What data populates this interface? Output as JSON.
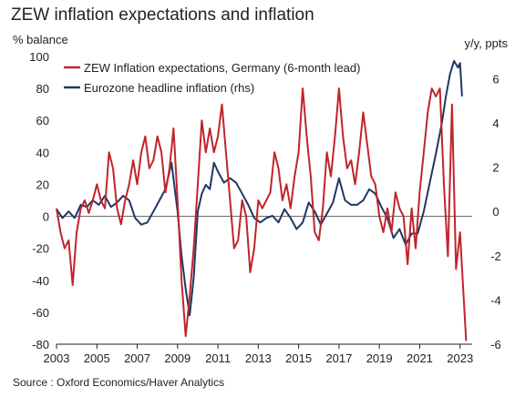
{
  "title": "ZEW inflation expectations and inflation",
  "y_left_unit": "% balance",
  "y_right_unit": "y/y, ppts",
  "source": "Source : Oxford Economics/Haver Analytics",
  "colors": {
    "zew": "#c0242b",
    "hicp": "#1f3864",
    "axis": "#222222"
  },
  "chart_data": {
    "type": "line",
    "title": "ZEW inflation expectations and inflation",
    "xlim": [
      2003,
      2023.6
    ],
    "x_ticks": [
      2003,
      2005,
      2007,
      2009,
      2011,
      2013,
      2015,
      2017,
      2019,
      2021,
      2023
    ],
    "y_left": {
      "label": "% balance",
      "lim": [
        -80,
        100
      ],
      "ticks": [
        -80,
        -60,
        -40,
        -20,
        0,
        20,
        40,
        60,
        80,
        100
      ]
    },
    "y_right": {
      "label": "y/y, ppts",
      "lim": [
        -6,
        7
      ],
      "ticks": [
        -6,
        -4,
        -2,
        0,
        2,
        4,
        6
      ]
    },
    "legend_position": "top-left",
    "series": [
      {
        "name": "ZEW Inflation expectations, Germany (6-month lead)",
        "axis": "left",
        "color": "#c0242b",
        "points": [
          [
            2003.0,
            5
          ],
          [
            2003.2,
            -10
          ],
          [
            2003.4,
            -20
          ],
          [
            2003.6,
            -15
          ],
          [
            2003.8,
            -43
          ],
          [
            2004.0,
            -10
          ],
          [
            2004.2,
            5
          ],
          [
            2004.4,
            10
          ],
          [
            2004.6,
            2
          ],
          [
            2004.8,
            10
          ],
          [
            2005.0,
            20
          ],
          [
            2005.2,
            10
          ],
          [
            2005.4,
            5
          ],
          [
            2005.6,
            40
          ],
          [
            2005.8,
            30
          ],
          [
            2006.0,
            5
          ],
          [
            2006.2,
            -5
          ],
          [
            2006.4,
            10
          ],
          [
            2006.6,
            20
          ],
          [
            2006.8,
            35
          ],
          [
            2007.0,
            20
          ],
          [
            2007.2,
            40
          ],
          [
            2007.4,
            50
          ],
          [
            2007.6,
            30
          ],
          [
            2007.8,
            35
          ],
          [
            2008.0,
            50
          ],
          [
            2008.2,
            40
          ],
          [
            2008.4,
            15
          ],
          [
            2008.6,
            30
          ],
          [
            2008.8,
            55
          ],
          [
            2009.0,
            10
          ],
          [
            2009.2,
            -40
          ],
          [
            2009.4,
            -75
          ],
          [
            2009.6,
            -50
          ],
          [
            2009.8,
            -20
          ],
          [
            2010.0,
            20
          ],
          [
            2010.2,
            60
          ],
          [
            2010.4,
            40
          ],
          [
            2010.6,
            55
          ],
          [
            2010.8,
            40
          ],
          [
            2011.0,
            50
          ],
          [
            2011.2,
            70
          ],
          [
            2011.4,
            40
          ],
          [
            2011.6,
            10
          ],
          [
            2011.8,
            -20
          ],
          [
            2012.0,
            -15
          ],
          [
            2012.2,
            10
          ],
          [
            2012.4,
            0
          ],
          [
            2012.6,
            -35
          ],
          [
            2012.8,
            -20
          ],
          [
            2013.0,
            10
          ],
          [
            2013.2,
            5
          ],
          [
            2013.4,
            10
          ],
          [
            2013.6,
            15
          ],
          [
            2013.8,
            40
          ],
          [
            2014.0,
            30
          ],
          [
            2014.2,
            10
          ],
          [
            2014.4,
            20
          ],
          [
            2014.6,
            5
          ],
          [
            2014.8,
            25
          ],
          [
            2015.0,
            40
          ],
          [
            2015.2,
            80
          ],
          [
            2015.4,
            50
          ],
          [
            2015.6,
            25
          ],
          [
            2015.8,
            -10
          ],
          [
            2016.0,
            -15
          ],
          [
            2016.2,
            5
          ],
          [
            2016.4,
            40
          ],
          [
            2016.6,
            25
          ],
          [
            2016.8,
            50
          ],
          [
            2017.0,
            80
          ],
          [
            2017.2,
            50
          ],
          [
            2017.4,
            30
          ],
          [
            2017.6,
            35
          ],
          [
            2017.8,
            20
          ],
          [
            2018.0,
            40
          ],
          [
            2018.2,
            65
          ],
          [
            2018.4,
            45
          ],
          [
            2018.6,
            25
          ],
          [
            2018.8,
            20
          ],
          [
            2019.0,
            0
          ],
          [
            2019.2,
            -10
          ],
          [
            2019.4,
            5
          ],
          [
            2019.6,
            -10
          ],
          [
            2019.8,
            15
          ],
          [
            2020.0,
            5
          ],
          [
            2020.2,
            0
          ],
          [
            2020.4,
            -30
          ],
          [
            2020.6,
            5
          ],
          [
            2020.8,
            -20
          ],
          [
            2021.0,
            15
          ],
          [
            2021.2,
            40
          ],
          [
            2021.4,
            65
          ],
          [
            2021.6,
            80
          ],
          [
            2021.8,
            75
          ],
          [
            2022.0,
            80
          ],
          [
            2022.2,
            20
          ],
          [
            2022.4,
            -25
          ],
          [
            2022.6,
            70
          ],
          [
            2022.8,
            -33
          ],
          [
            2023.0,
            -10
          ],
          [
            2023.2,
            -55
          ],
          [
            2023.3,
            -78
          ]
        ]
      },
      {
        "name": "Eurozone headline inflation (rhs)",
        "axis": "right",
        "color": "#1f3864",
        "points": [
          [
            2003.0,
            0.1
          ],
          [
            2003.3,
            -0.3
          ],
          [
            2003.6,
            0.0
          ],
          [
            2003.9,
            -0.3
          ],
          [
            2004.2,
            0.3
          ],
          [
            2004.5,
            0.2
          ],
          [
            2004.8,
            0.5
          ],
          [
            2005.1,
            0.3
          ],
          [
            2005.4,
            0.7
          ],
          [
            2005.7,
            0.2
          ],
          [
            2006.0,
            0.4
          ],
          [
            2006.3,
            0.7
          ],
          [
            2006.6,
            0.5
          ],
          [
            2006.9,
            -0.3
          ],
          [
            2007.2,
            -0.6
          ],
          [
            2007.5,
            -0.5
          ],
          [
            2007.8,
            0.0
          ],
          [
            2008.1,
            0.5
          ],
          [
            2008.4,
            1.0
          ],
          [
            2008.7,
            2.2
          ],
          [
            2009.0,
            0.0
          ],
          [
            2009.2,
            -2.0
          ],
          [
            2009.4,
            -3.5
          ],
          [
            2009.6,
            -4.7
          ],
          [
            2009.8,
            -3.0
          ],
          [
            2010.0,
            0.0
          ],
          [
            2010.2,
            0.8
          ],
          [
            2010.4,
            1.2
          ],
          [
            2010.6,
            1.0
          ],
          [
            2010.8,
            2.2
          ],
          [
            2011.0,
            1.8
          ],
          [
            2011.3,
            1.3
          ],
          [
            2011.6,
            1.5
          ],
          [
            2011.9,
            1.3
          ],
          [
            2012.2,
            0.8
          ],
          [
            2012.5,
            0.3
          ],
          [
            2012.8,
            -0.3
          ],
          [
            2013.1,
            -0.5
          ],
          [
            2013.4,
            -0.3
          ],
          [
            2013.7,
            -0.2
          ],
          [
            2014.0,
            -0.5
          ],
          [
            2014.3,
            0.1
          ],
          [
            2014.6,
            -0.3
          ],
          [
            2014.9,
            -0.8
          ],
          [
            2015.2,
            -0.5
          ],
          [
            2015.5,
            0.4
          ],
          [
            2015.8,
            0.0
          ],
          [
            2016.1,
            -0.6
          ],
          [
            2016.4,
            -0.1
          ],
          [
            2016.7,
            0.4
          ],
          [
            2017.0,
            1.5
          ],
          [
            2017.3,
            0.5
          ],
          [
            2017.6,
            0.3
          ],
          [
            2017.9,
            0.3
          ],
          [
            2018.2,
            0.5
          ],
          [
            2018.5,
            1.0
          ],
          [
            2018.8,
            0.8
          ],
          [
            2019.1,
            0.2
          ],
          [
            2019.4,
            -0.3
          ],
          [
            2019.7,
            -1.2
          ],
          [
            2020.0,
            -0.8
          ],
          [
            2020.3,
            -1.5
          ],
          [
            2020.6,
            -1.0
          ],
          [
            2020.9,
            -1.0
          ],
          [
            2021.2,
            0.0
          ],
          [
            2021.5,
            1.3
          ],
          [
            2021.8,
            2.6
          ],
          [
            2022.1,
            4.0
          ],
          [
            2022.3,
            5.2
          ],
          [
            2022.5,
            6.2
          ],
          [
            2022.7,
            6.8
          ],
          [
            2022.9,
            6.5
          ],
          [
            2023.0,
            6.7
          ],
          [
            2023.1,
            5.2
          ]
        ]
      }
    ]
  }
}
